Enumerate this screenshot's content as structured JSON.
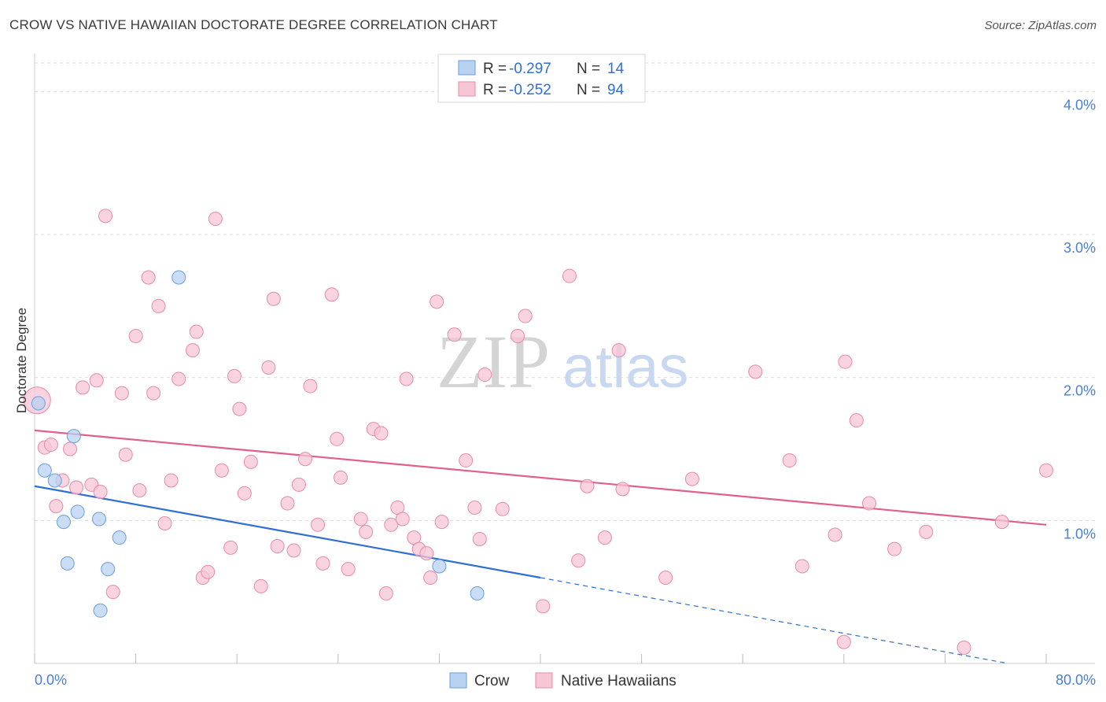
{
  "title": "CROW VS NATIVE HAWAIIAN DOCTORATE DEGREE CORRELATION CHART",
  "source": "Source: ZipAtlas.com",
  "watermark": {
    "zip": "ZIP",
    "atlas": "atlas"
  },
  "colors": {
    "crow_fill": "#b8d2f2",
    "crow_stroke": "#6b9ee0",
    "crow_line": "#2e6fd1",
    "nh_fill": "#f7c6d5",
    "nh_stroke": "#e88aa8",
    "nh_line": "#e0608a",
    "axis_text": "#4a7fd0",
    "grid": "#dddddd"
  },
  "legend": {
    "rows": [
      {
        "r_label": "R =",
        "r_value": "-0.297",
        "n_label": "N =",
        "n_value": "14",
        "series": "crow"
      },
      {
        "r_label": "R =",
        "r_value": "-0.252",
        "n_label": "N =",
        "n_value": "94",
        "series": "nh"
      }
    ]
  },
  "bottom_legend": [
    "Crow",
    "Native Hawaiians"
  ],
  "chart_data": {
    "type": "scatter",
    "title": "CROW VS NATIVE HAWAIIAN DOCTORATE DEGREE CORRELATION CHART",
    "xlabel": "",
    "ylabel": "Doctorate Degree",
    "xlim": [
      0,
      80
    ],
    "ylim": [
      0,
      4.2
    ],
    "x_tick_labels": [
      "0.0%",
      "80.0%"
    ],
    "y_ticks": [
      1.0,
      2.0,
      3.0,
      4.0
    ],
    "y_tick_labels": [
      "1.0%",
      "2.0%",
      "3.0%",
      "4.0%"
    ],
    "grid": true,
    "legend_position": "top-center",
    "series": [
      {
        "name": "Crow",
        "r": -0.297,
        "n": 14,
        "trend": {
          "x0": 0,
          "y0": 1.24,
          "x1": 40,
          "y1": 0.6,
          "dashed_to_x": 77,
          "dashed_to_y": 0.0
        },
        "points": [
          [
            0.3,
            1.82
          ],
          [
            0.8,
            1.35
          ],
          [
            1.6,
            1.28
          ],
          [
            3.1,
            1.59
          ],
          [
            2.3,
            0.99
          ],
          [
            3.4,
            1.06
          ],
          [
            5.1,
            1.01
          ],
          [
            2.6,
            0.7
          ],
          [
            5.8,
            0.66
          ],
          [
            6.7,
            0.88
          ],
          [
            11.4,
            2.7
          ],
          [
            5.2,
            0.37
          ],
          [
            32.0,
            0.68
          ],
          [
            35.0,
            0.49
          ]
        ]
      },
      {
        "name": "Native Hawaiians",
        "r": -0.252,
        "n": 94,
        "trend": {
          "x0": 0,
          "y0": 1.63,
          "x1": 80,
          "y1": 0.97
        },
        "points": [
          [
            0.2,
            1.84
          ],
          [
            0.8,
            1.51
          ],
          [
            1.3,
            1.53
          ],
          [
            1.7,
            1.1
          ],
          [
            2.2,
            1.28
          ],
          [
            2.8,
            1.5
          ],
          [
            3.3,
            1.23
          ],
          [
            3.8,
            1.93
          ],
          [
            4.5,
            1.25
          ],
          [
            4.9,
            1.98
          ],
          [
            5.2,
            1.2
          ],
          [
            5.6,
            3.13
          ],
          [
            6.2,
            0.5
          ],
          [
            6.9,
            1.89
          ],
          [
            7.2,
            1.46
          ],
          [
            8.0,
            2.29
          ],
          [
            8.3,
            1.21
          ],
          [
            9.0,
            2.7
          ],
          [
            9.4,
            1.89
          ],
          [
            9.8,
            2.5
          ],
          [
            10.3,
            0.98
          ],
          [
            10.8,
            1.28
          ],
          [
            11.4,
            1.99
          ],
          [
            12.5,
            2.19
          ],
          [
            12.8,
            2.32
          ],
          [
            13.3,
            0.6
          ],
          [
            13.7,
            0.64
          ],
          [
            14.3,
            3.11
          ],
          [
            14.8,
            1.35
          ],
          [
            15.5,
            0.81
          ],
          [
            15.8,
            2.01
          ],
          [
            16.2,
            1.78
          ],
          [
            16.6,
            1.19
          ],
          [
            17.1,
            1.41
          ],
          [
            17.9,
            0.54
          ],
          [
            18.5,
            2.07
          ],
          [
            18.9,
            2.55
          ],
          [
            19.2,
            0.82
          ],
          [
            20.0,
            1.12
          ],
          [
            20.5,
            0.79
          ],
          [
            20.9,
            1.25
          ],
          [
            21.4,
            1.43
          ],
          [
            21.8,
            1.94
          ],
          [
            22.4,
            0.97
          ],
          [
            22.8,
            0.7
          ],
          [
            23.5,
            2.58
          ],
          [
            23.9,
            1.57
          ],
          [
            24.2,
            1.3
          ],
          [
            24.8,
            0.66
          ],
          [
            25.8,
            1.01
          ],
          [
            26.2,
            0.92
          ],
          [
            26.8,
            1.64
          ],
          [
            27.4,
            1.61
          ],
          [
            27.8,
            0.49
          ],
          [
            28.2,
            0.97
          ],
          [
            28.7,
            1.09
          ],
          [
            29.1,
            1.01
          ],
          [
            29.4,
            1.99
          ],
          [
            30.0,
            0.88
          ],
          [
            30.4,
            0.8
          ],
          [
            31.0,
            0.77
          ],
          [
            31.3,
            0.6
          ],
          [
            31.8,
            2.53
          ],
          [
            32.2,
            0.99
          ],
          [
            33.2,
            2.3
          ],
          [
            34.1,
            1.42
          ],
          [
            34.8,
            1.09
          ],
          [
            35.2,
            0.87
          ],
          [
            35.6,
            2.02
          ],
          [
            37.0,
            1.08
          ],
          [
            38.2,
            2.29
          ],
          [
            38.8,
            2.43
          ],
          [
            40.2,
            0.4
          ],
          [
            42.3,
            2.71
          ],
          [
            43.0,
            0.72
          ],
          [
            43.7,
            1.24
          ],
          [
            45.1,
            0.88
          ],
          [
            46.2,
            2.19
          ],
          [
            46.5,
            1.22
          ],
          [
            49.9,
            0.6
          ],
          [
            52.0,
            1.29
          ],
          [
            57.0,
            2.04
          ],
          [
            59.7,
            1.42
          ],
          [
            60.7,
            0.68
          ],
          [
            63.3,
            0.9
          ],
          [
            64.1,
            2.11
          ],
          [
            64.0,
            0.15
          ],
          [
            65.0,
            1.7
          ],
          [
            66.0,
            1.12
          ],
          [
            68.0,
            0.8
          ],
          [
            70.5,
            0.92
          ],
          [
            73.5,
            0.11
          ],
          [
            76.5,
            0.99
          ],
          [
            80.0,
            1.35
          ]
        ]
      }
    ]
  }
}
